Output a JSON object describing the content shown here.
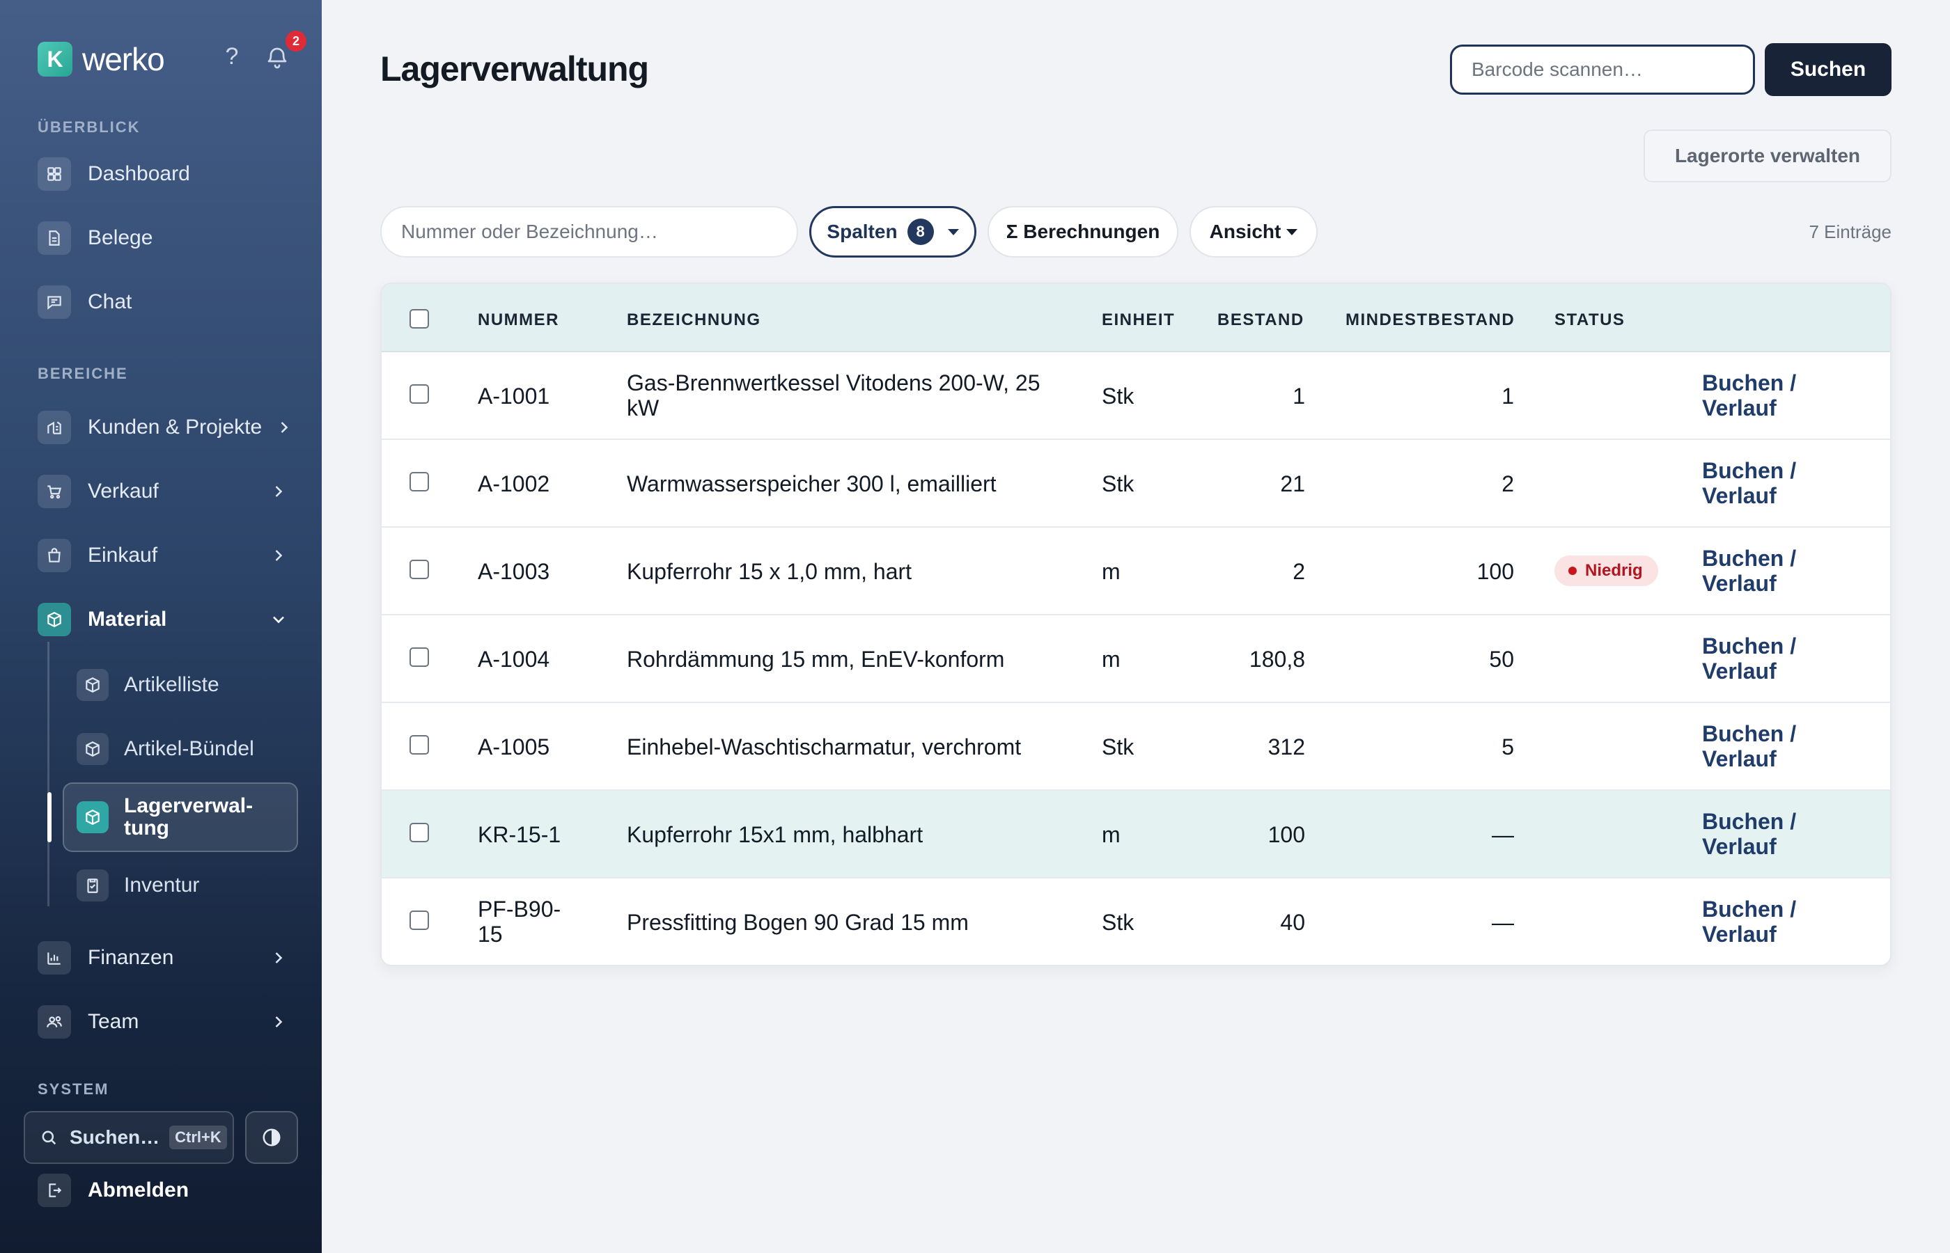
{
  "app": {
    "brand_letter": "K",
    "brand_name": "werko",
    "help_label": "?",
    "notification_count": "2"
  },
  "sidebar": {
    "sections": {
      "overview": "ÜBERBLICK",
      "areas": "BEREICHE",
      "system": "SYSTEM"
    },
    "items": [
      {
        "label": "Dashboard",
        "icon": "dashboard-icon"
      },
      {
        "label": "Belege",
        "icon": "document-icon"
      },
      {
        "label": "Chat",
        "icon": "chat-icon"
      },
      {
        "label": "Kunden & Projekte",
        "icon": "building-icon"
      },
      {
        "label": "Verkauf",
        "icon": "cart-icon"
      },
      {
        "label": "Einkauf",
        "icon": "bag-icon"
      },
      {
        "label": "Material",
        "icon": "box-icon"
      },
      {
        "label": "Finanzen",
        "icon": "chart-icon"
      },
      {
        "label": "Team",
        "icon": "users-icon"
      }
    ],
    "material_sub": [
      {
        "label": "Artikelliste",
        "icon": "box-icon"
      },
      {
        "label": "Artikel-Bündel",
        "icon": "box-icon"
      },
      {
        "label": "Lagerverwal-\ntung",
        "icon": "box-icon"
      },
      {
        "label": "Inventur",
        "icon": "clipboard-icon"
      }
    ],
    "search_label": "Suchen…",
    "search_shortcut": "Ctrl+K",
    "logout_label": "Abmelden"
  },
  "main": {
    "title": "Lagerverwaltung",
    "barcode_placeholder": "Barcode scannen…",
    "search_button": "Suchen",
    "manage_locations_button": "Lagerorte verwalten",
    "filter_placeholder": "Nummer oder Bezeichnung…",
    "columns_button": "Spalten",
    "columns_count": "8",
    "calculations_button": "Σ Berechnungen",
    "view_button": "Ansicht",
    "entries_count": "7 Einträge"
  },
  "table": {
    "headers": [
      "NUMMER",
      "BEZEICHNUNG",
      "EINHEIT",
      "BESTAND",
      "MINDESTBESTAND",
      "STATUS"
    ],
    "action_label": "Buchen /\nVerlauf",
    "rows": [
      {
        "nummer": "A-1001",
        "bezeichnung": "Gas-Brennwertkessel Vitodens 200-W, 25 kW",
        "einheit": "Stk",
        "bestand": "1",
        "mindest": "1",
        "status": ""
      },
      {
        "nummer": "A-1002",
        "bezeichnung": "Warmwasserspeicher 300 l, emailliert",
        "einheit": "Stk",
        "bestand": "21",
        "mindest": "2",
        "status": ""
      },
      {
        "nummer": "A-1003",
        "bezeichnung": "Kupferrohr 15 x 1,0 mm, hart",
        "einheit": "m",
        "bestand": "2",
        "mindest": "100",
        "status": "Niedrig"
      },
      {
        "nummer": "A-1004",
        "bezeichnung": "Rohrdämmung 15 mm, EnEV-konform",
        "einheit": "m",
        "bestand": "180,8",
        "mindest": "50",
        "status": ""
      },
      {
        "nummer": "A-1005",
        "bezeichnung": "Einhebel-Waschtischarmatur, verchromt",
        "einheit": "Stk",
        "bestand": "312",
        "mindest": "5",
        "status": ""
      },
      {
        "nummer": "KR-15-1",
        "bezeichnung": "Kupferrohr 15x1 mm, halbhart",
        "einheit": "m",
        "bestand": "100",
        "mindest": "—",
        "status": ""
      },
      {
        "nummer": "PF-B90-\n15",
        "bezeichnung": "Pressfitting Bogen 90 Grad 15 mm",
        "einheit": "Stk",
        "bestand": "40",
        "mindest": "—",
        "status": ""
      }
    ]
  },
  "colors": {
    "accent_dark": "#182338",
    "accent_navy": "#1e3357",
    "teal": "#2fa7a5",
    "status_low": "#c8161f",
    "row_highlight": "#e4f3f1"
  }
}
